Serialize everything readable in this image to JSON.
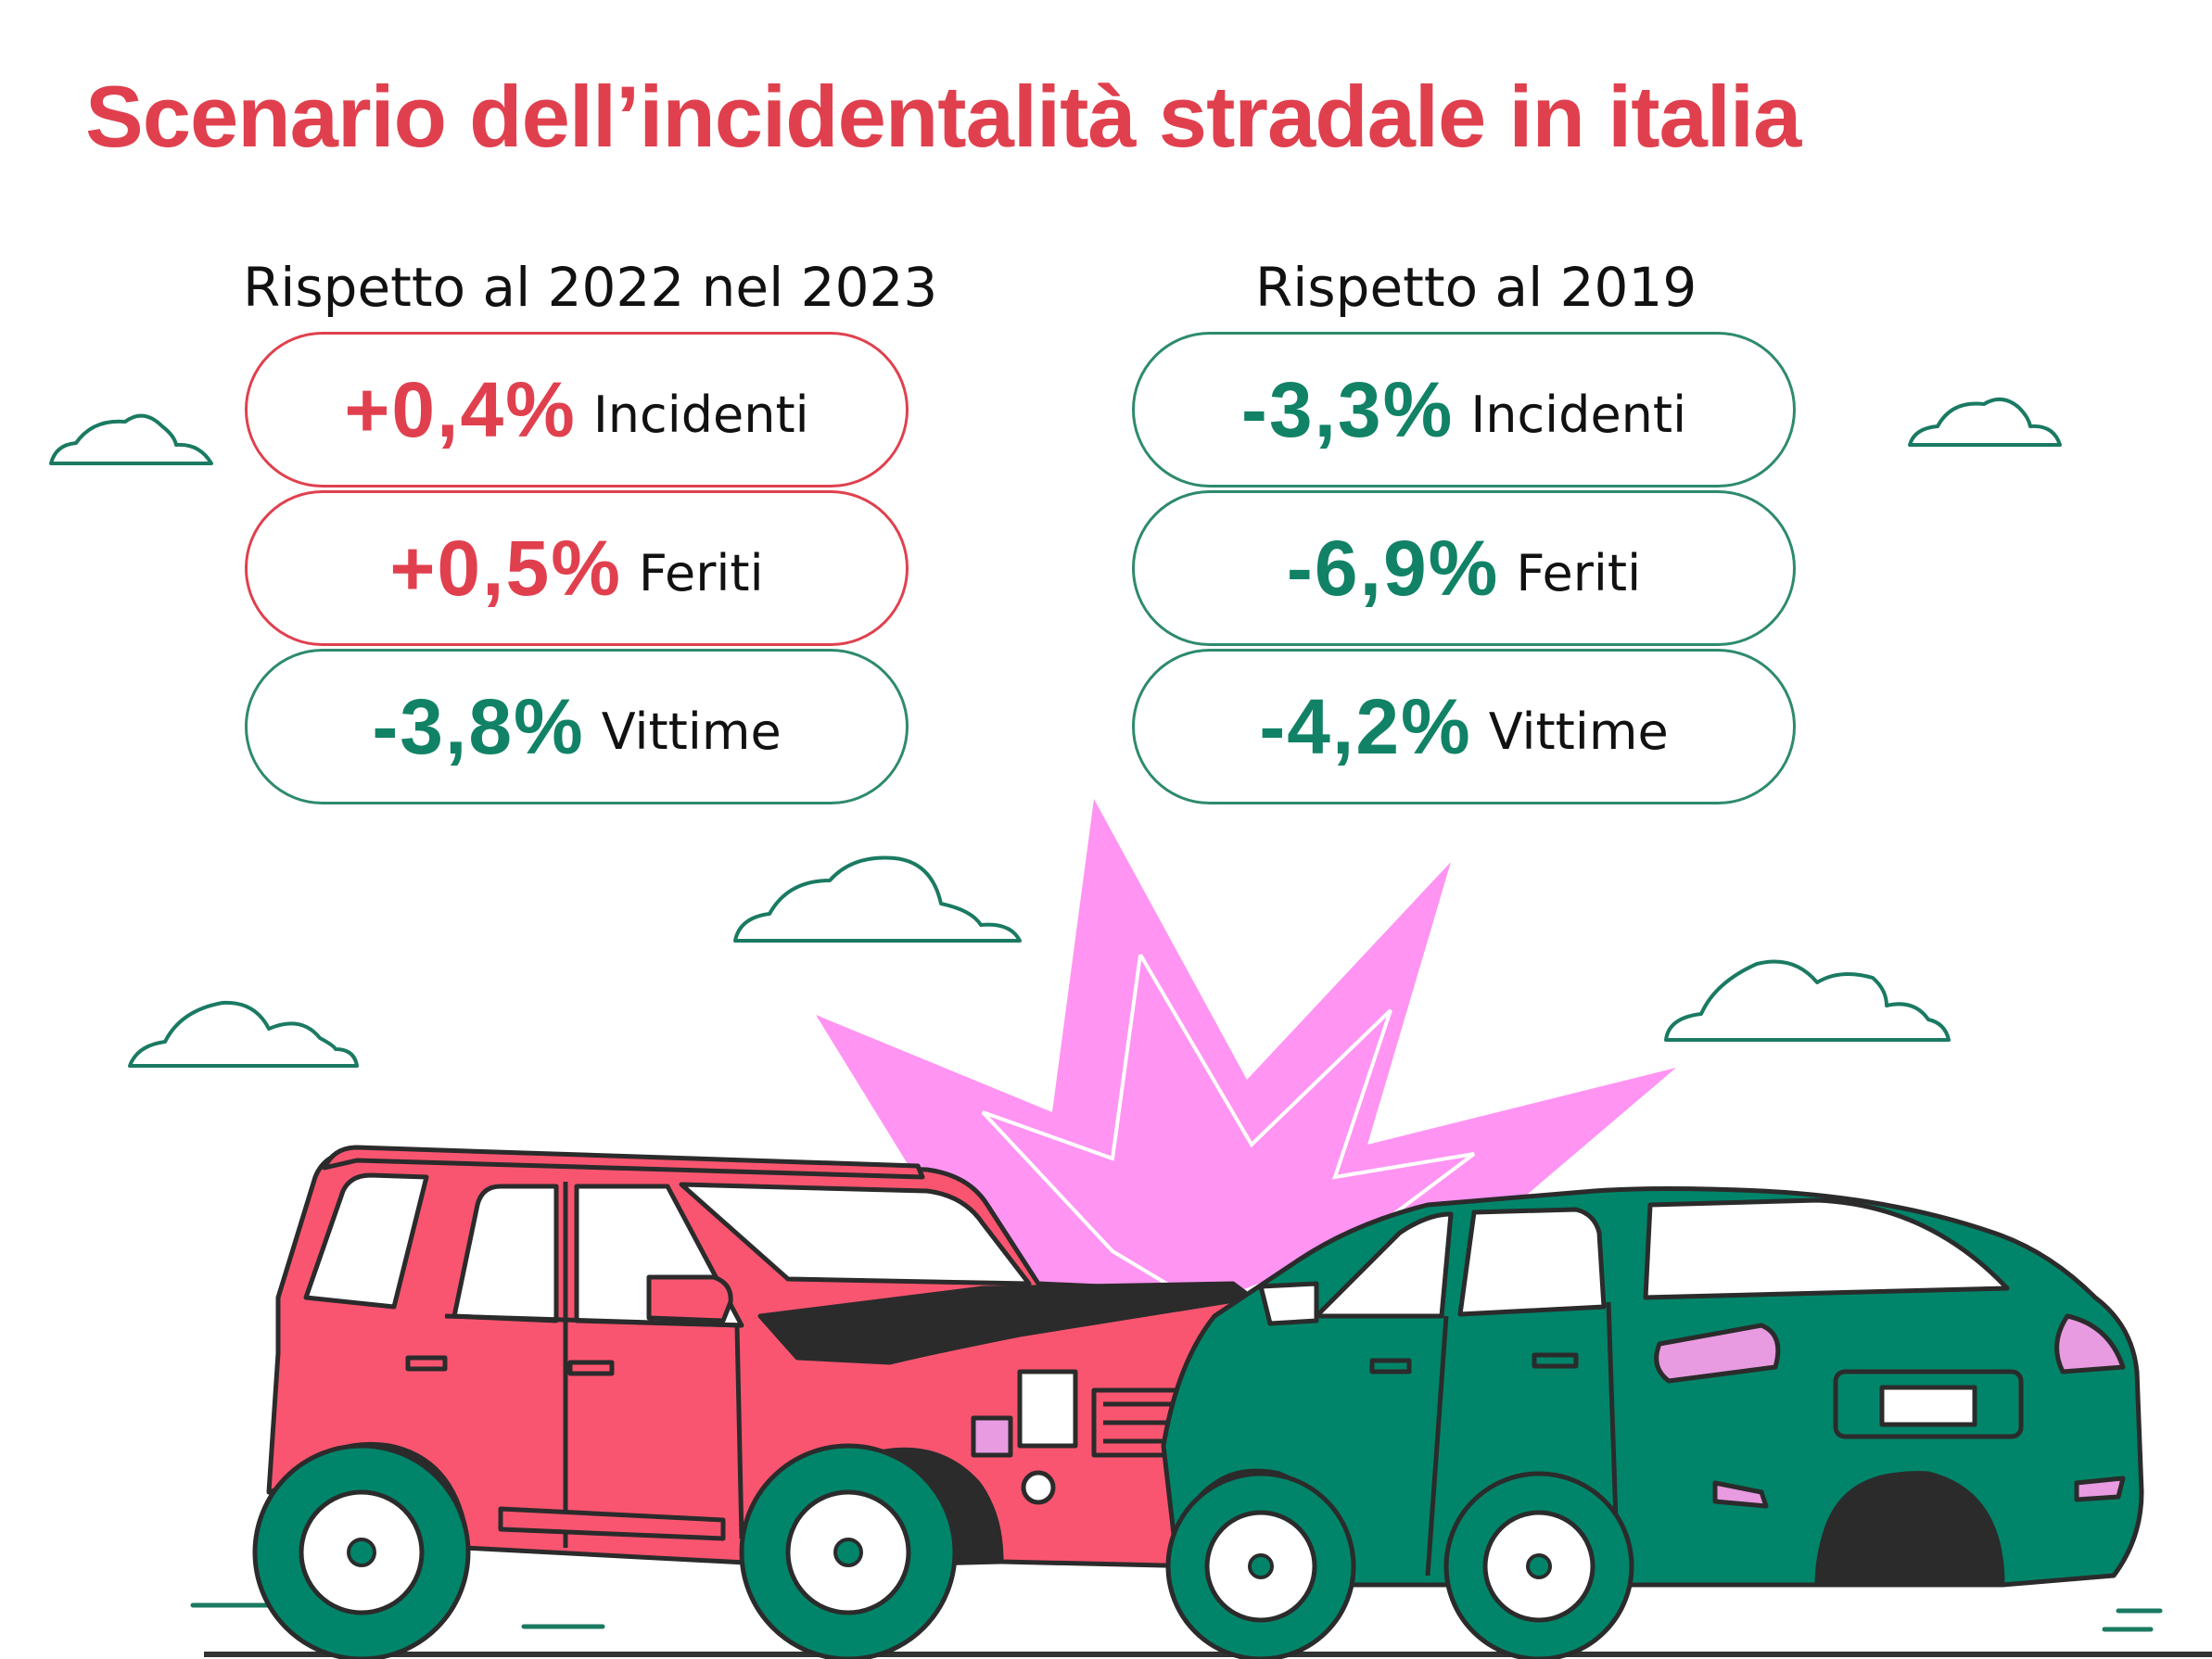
{
  "title": "Scenario dell’incidentalità stradale in italia",
  "colors": {
    "accent_red": "#e0404e",
    "accent_green": "#118266",
    "burst": "#ff94f2",
    "car_red": "#fa5570",
    "car_green": "#00856a"
  },
  "left": {
    "heading": "Rispetto al 2022 nel 2023",
    "stats": [
      {
        "value": "+0,4%",
        "label": "Incidenti",
        "tone": "red"
      },
      {
        "value": "+0,5%",
        "label": "Feriti",
        "tone": "red"
      },
      {
        "value": "-3,8%",
        "label": "Vittime",
        "tone": "green"
      }
    ]
  },
  "right": {
    "heading": "Rispetto al 2019",
    "stats": [
      {
        "value": "-3,3%",
        "label": "Incidenti",
        "tone": "green"
      },
      {
        "value": "-6,9%",
        "label": "Feriti",
        "tone": "green"
      },
      {
        "value": "-4,2%",
        "label": "Vittime",
        "tone": "green"
      }
    ]
  },
  "icons": [
    "cloud-icon",
    "explosion-icon",
    "red-suv-icon",
    "green-car-icon"
  ]
}
